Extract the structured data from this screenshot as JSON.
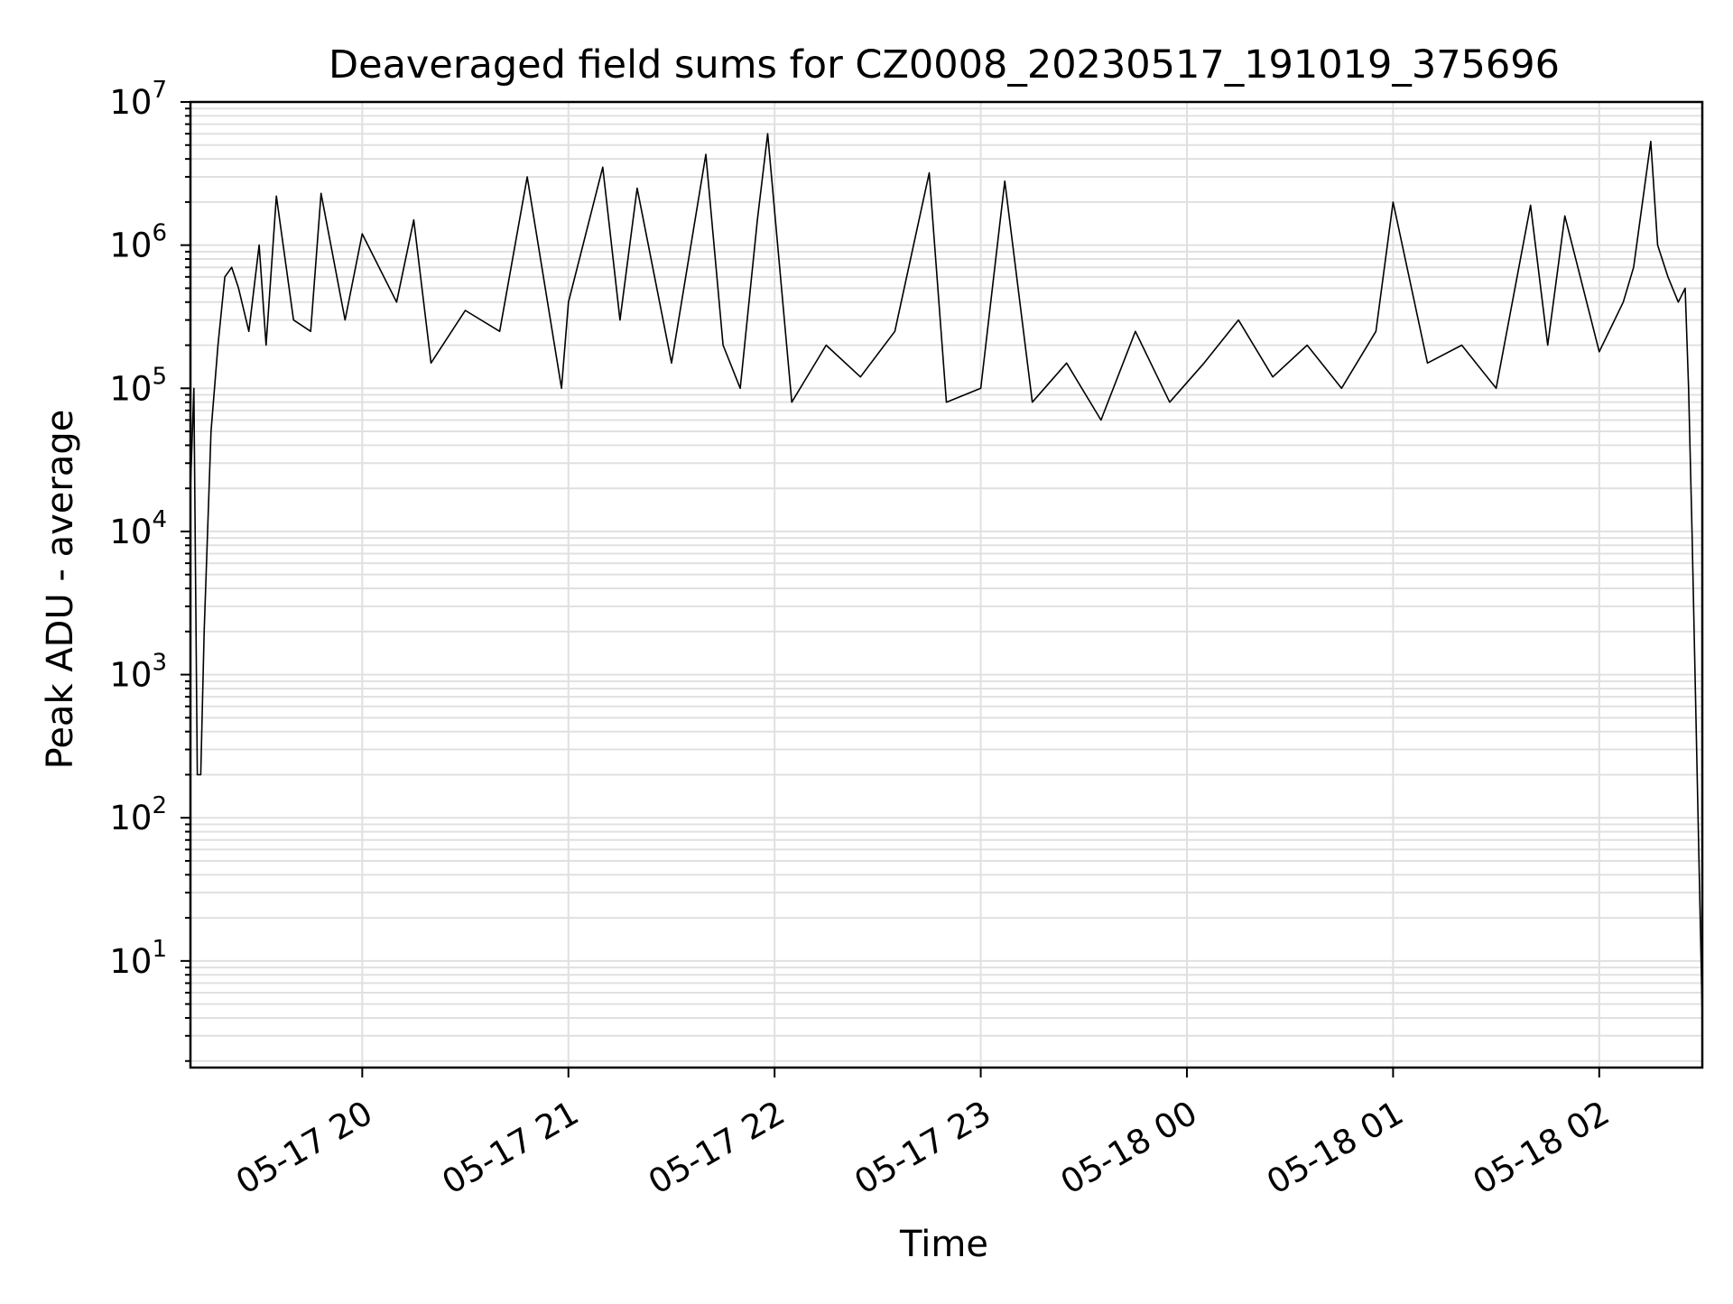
{
  "chart_data": {
    "type": "line",
    "title": "Deaveraged field sums for CZ0008_20230517_191019_375696",
    "xlabel": "Time",
    "ylabel": "Peak ADU - average",
    "y_scale": "log",
    "ylim": [
      1.8,
      10000000
    ],
    "xlim": [
      "2023-05-17 19:10",
      "2023-05-18 02:30"
    ],
    "grid": true,
    "grid_minor_y": true,
    "line_color": "#000000",
    "grid_color": "#e0e0e0",
    "x_ticks": [
      "05-17 20",
      "05-17 21",
      "05-17 22",
      "05-17 23",
      "05-18 00",
      "05-18 01",
      "05-18 02"
    ],
    "y_ticks": [
      {
        "base": "10",
        "exp": "1"
      },
      {
        "base": "10",
        "exp": "2"
      },
      {
        "base": "10",
        "exp": "3"
      },
      {
        "base": "10",
        "exp": "4"
      },
      {
        "base": "10",
        "exp": "5"
      },
      {
        "base": "10",
        "exp": "6"
      },
      {
        "base": "10",
        "exp": "7"
      }
    ],
    "series": [
      {
        "x": [
          "2023-05-17 19:10",
          "2023-05-17 19:11",
          "2023-05-17 19:12",
          "2023-05-17 19:13",
          "2023-05-17 19:14",
          "2023-05-17 19:16",
          "2023-05-17 19:18",
          "2023-05-17 19:20",
          "2023-05-17 19:22",
          "2023-05-17 19:24",
          "2023-05-17 19:27",
          "2023-05-17 19:30",
          "2023-05-17 19:32",
          "2023-05-17 19:35",
          "2023-05-17 19:40",
          "2023-05-17 19:45",
          "2023-05-17 19:48",
          "2023-05-17 19:55",
          "2023-05-17 20:00",
          "2023-05-17 20:10",
          "2023-05-17 20:15",
          "2023-05-17 20:20",
          "2023-05-17 20:30",
          "2023-05-17 20:40",
          "2023-05-17 20:48",
          "2023-05-17 20:58",
          "2023-05-17 21:00",
          "2023-05-17 21:10",
          "2023-05-17 21:15",
          "2023-05-17 21:20",
          "2023-05-17 21:30",
          "2023-05-17 21:40",
          "2023-05-17 21:45",
          "2023-05-17 21:50",
          "2023-05-17 21:55",
          "2023-05-17 21:58",
          "2023-05-17 22:05",
          "2023-05-17 22:15",
          "2023-05-17 22:25",
          "2023-05-17 22:35",
          "2023-05-17 22:45",
          "2023-05-17 22:50",
          "2023-05-17 23:00",
          "2023-05-17 23:07",
          "2023-05-17 23:15",
          "2023-05-17 23:25",
          "2023-05-17 23:35",
          "2023-05-17 23:45",
          "2023-05-17 23:55",
          "2023-05-18 00:05",
          "2023-05-18 00:15",
          "2023-05-18 00:25",
          "2023-05-18 00:35",
          "2023-05-18 00:45",
          "2023-05-18 00:55",
          "2023-05-18 01:00",
          "2023-05-18 01:10",
          "2023-05-18 01:20",
          "2023-05-18 01:30",
          "2023-05-18 01:40",
          "2023-05-18 01:45",
          "2023-05-18 01:50",
          "2023-05-18 02:00",
          "2023-05-18 02:07",
          "2023-05-18 02:10",
          "2023-05-18 02:15",
          "2023-05-18 02:17",
          "2023-05-18 02:20",
          "2023-05-18 02:23",
          "2023-05-18 02:25",
          "2023-05-18 02:26",
          "2023-05-18 02:27",
          "2023-05-18 02:30"
        ],
        "y": [
          20000,
          100000,
          200,
          200,
          2000,
          50000,
          200000,
          600000,
          700000,
          500000,
          250000,
          1000000,
          200000,
          2200000,
          300000,
          250000,
          2300000,
          300000,
          1200000,
          400000,
          1500000,
          150000,
          350000,
          250000,
          3000000,
          100000,
          400000,
          3500000,
          300000,
          2500000,
          150000,
          4300000,
          200000,
          100000,
          1500000,
          6000000,
          80000,
          200000,
          120000,
          250000,
          3200000,
          80000,
          100000,
          2800000,
          80000,
          150000,
          60000,
          250000,
          80000,
          150000,
          300000,
          120000,
          200000,
          100000,
          250000,
          2000000,
          150000,
          200000,
          100000,
          1900000,
          200000,
          1600000,
          180000,
          400000,
          700000,
          5300000,
          1000000,
          600000,
          400000,
          500000,
          100000,
          10000,
          4
        ]
      }
    ]
  }
}
